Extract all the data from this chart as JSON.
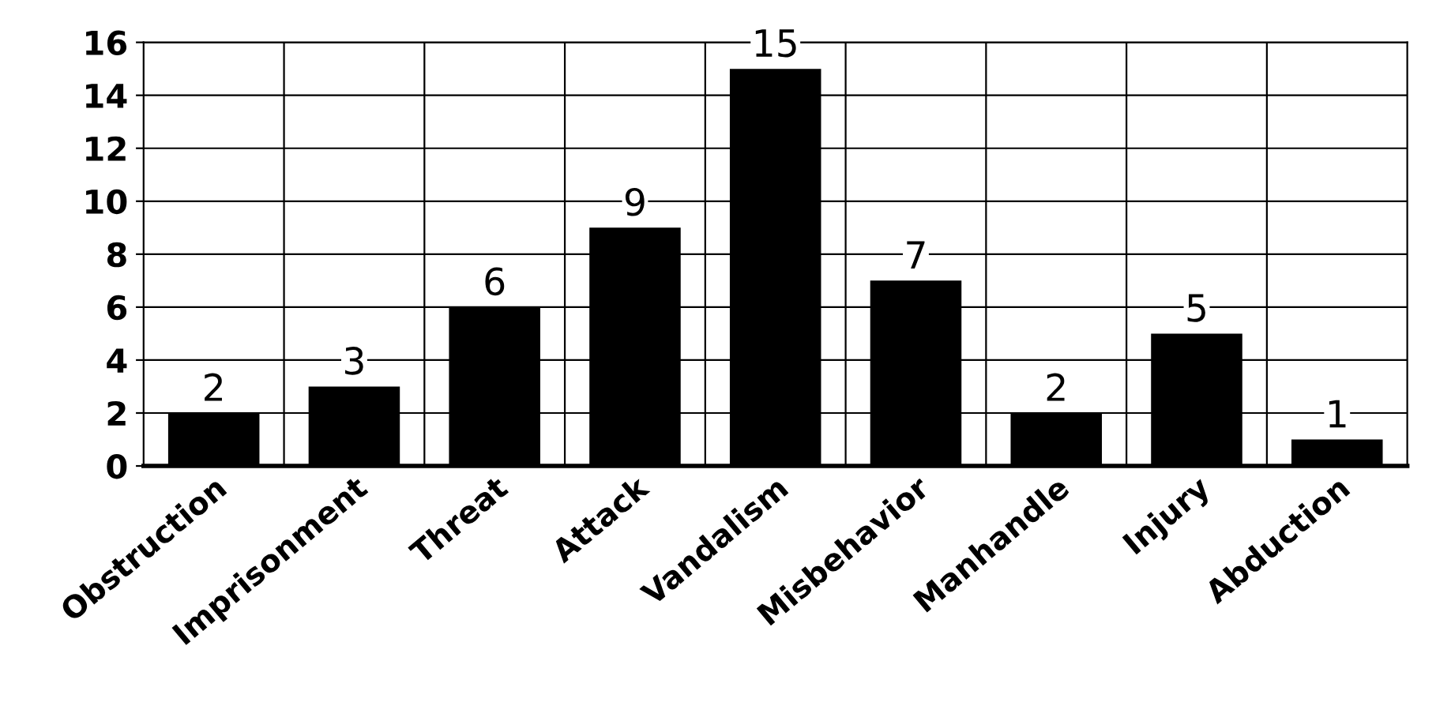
{
  "chart_data": {
    "type": "bar",
    "categories": [
      "Obstruction",
      "Imprisonment",
      "Threat",
      "Attack",
      "Vandalism",
      "Misbehavior",
      "Manhandle",
      "Injury",
      "Abduction"
    ],
    "values": [
      2,
      3,
      6,
      9,
      15,
      7,
      2,
      5,
      1
    ],
    "color": "#000000",
    "ylim": [
      0,
      16
    ],
    "yticks": [
      0,
      2,
      4,
      6,
      8,
      10,
      12,
      14,
      16
    ],
    "grid": true,
    "data_labels": true
  }
}
